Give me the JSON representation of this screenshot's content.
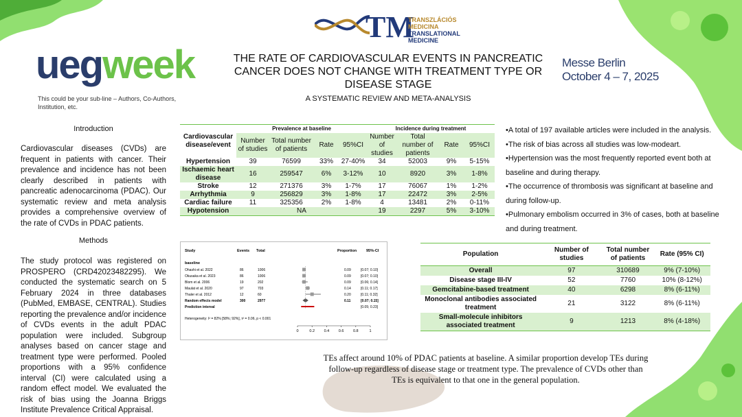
{
  "header": {
    "logo_ueg": "ueg",
    "logo_week": "week",
    "subline": "This could be your sub-line – Authors, Co-Authors, Institution, etc.",
    "title": "THE RATE OF CARDIOVASCULAR EVENTS IN PANCREATIC CANCER DOES NOT CHANGE WITH TREATMENT TYPE OR DISEASE STAGE",
    "subtitle": "A SYSTEMATIC REVIEW AND META-ANALYSIS",
    "venue_line1": "Messe Berlin",
    "venue_line2": "October 4 – 7, 2025",
    "tm_logo": "TM",
    "tm_hu1": "TRANSZLÁCIÓS",
    "tm_hu2": "MEDICINA",
    "tm_en1": "TRANSLATIONAL",
    "tm_en2": "MEDICINE"
  },
  "intro": {
    "heading": "Introduction",
    "text": "Cardiovascular diseases (CVDs) are frequent in patients with cancer. Their prevalence and incidence has not been clearly described in patients with pancreatic adenocarcinoma (PDAC). Our systematic review and meta analysis provides a comprehensive overview of the rate of CVDs in PDAC patients."
  },
  "methods": {
    "heading": "Methods",
    "text": "The study protocol was registered on PROSPERO (CRD42023482295). We conducted the systematic search on 5 February 2024 in three databases (PubMed, EMBASE, CENTRAL). Studies reporting the prevalence and/or incidence of CVDs events in the adult PDAC population were included. Subgroup analyses based on cancer stage and treatment type were performed. Pooled proportions with a 95% confidence interval (CI) were calculated using a random effect model. We evaluated the risk of bias using the Joanna Briggs Institute Prevalence Critical Appraisal."
  },
  "table1": {
    "group_baseline": "Prevalence at baseline",
    "group_incidence": "Incidence during treatment",
    "col_event": "Cardiovascular disease/event",
    "col_n_studies": "Number of studies",
    "col_total": "Total number of patients",
    "col_rate": "Rate",
    "col_ci": "95%CI",
    "rows": [
      {
        "event": "Hypertension",
        "b_n": "39",
        "b_total": "76599",
        "b_rate": "33%",
        "b_ci": "27-40%",
        "i_n": "34",
        "i_total": "52003",
        "i_rate": "9%",
        "i_ci": "5-15%"
      },
      {
        "event": "Ischaemic heart disease",
        "b_n": "16",
        "b_total": "259547",
        "b_rate": "6%",
        "b_ci": "3-12%",
        "i_n": "10",
        "i_total": "8920",
        "i_rate": "3%",
        "i_ci": "1-8%"
      },
      {
        "event": "Stroke",
        "b_n": "12",
        "b_total": "271376",
        "b_rate": "3%",
        "b_ci": "1-7%",
        "i_n": "17",
        "i_total": "76067",
        "i_rate": "1%",
        "i_ci": "1-2%"
      },
      {
        "event": "Arrhythmia",
        "b_n": "9",
        "b_total": "256829",
        "b_rate": "3%",
        "b_ci": "1-8%",
        "i_n": "17",
        "i_total": "22472",
        "i_rate": "3%",
        "i_ci": "2-5%"
      },
      {
        "event": "Cardiac failure",
        "b_n": "11",
        "b_total": "325356",
        "b_rate": "2%",
        "b_ci": "1-8%",
        "i_n": "4",
        "i_total": "13481",
        "i_rate": "2%",
        "i_ci": "0-11%"
      },
      {
        "event": "Hypotension",
        "b_na": "NA",
        "i_n": "19",
        "i_total": "2297",
        "i_rate": "5%",
        "i_ci": "3-10%"
      }
    ]
  },
  "results": {
    "bullets": [
      "•A total of 197 available articles were included in the analysis.",
      "•The risk of bias across all studies was low-modeart.",
      "•Hypertension was the most frequently reported event both at baseline and during therapy.",
      "•The occurrence of thrombosis was significant at baseline and during follow-up.",
      "•Pulmonary embolism occurred in 3% of cases, both at baseline and during treatment."
    ]
  },
  "forest": {
    "col_study": "Study",
    "col_events": "Events",
    "col_total": "Total",
    "col_prop": "Proportion",
    "col_ci": "95%-CI",
    "group": "baseline",
    "studies": [
      {
        "name": "Ohashi et al. 2022",
        "events": "86",
        "total": "1006",
        "prop": 0.09,
        "lo": 0.07,
        "hi": 0.1,
        "prop_label": "0.09",
        "ci": "[0.07; 0.10]"
      },
      {
        "name": "Okusaka et al. 2023",
        "events": "86",
        "total": "1006",
        "prop": 0.09,
        "lo": 0.07,
        "hi": 0.1,
        "prop_label": "0.09",
        "ci": "[0.07; 0.10]"
      },
      {
        "name": "Blom et al. 2006",
        "events": "19",
        "total": "202",
        "prop": 0.09,
        "lo": 0.06,
        "hi": 0.14,
        "prop_label": "0.09",
        "ci": "[0.06; 0.14]"
      },
      {
        "name": "Maulat et al. 2020",
        "events": "97",
        "total": "703",
        "prop": 0.14,
        "lo": 0.11,
        "hi": 0.17,
        "prop_label": "0.14",
        "ci": "[0.11; 0.17]"
      },
      {
        "name": "Thaler et al. 2012",
        "events": "12",
        "total": "60",
        "prop": 0.2,
        "lo": 0.11,
        "hi": 0.32,
        "prop_label": "0.20",
        "ci": "[0.11; 0.32]"
      }
    ],
    "random_label": "Random effects model",
    "random_events": "300",
    "random_total": "2977",
    "random_prop": 0.11,
    "random_lo": 0.07,
    "random_hi": 0.15,
    "random_prop_label": "0.11",
    "random_ci": "[0.07; 0.15]",
    "pred_label": "Prediction interval",
    "pred_lo": 0.05,
    "pred_hi": 0.23,
    "pred_ci": "[0.05; 0.23]",
    "heterogeneity": "Heterogeneity: I² = 82% [58%; 92%], τ² = 0.06, p < 0.001",
    "axis_ticks": [
      "0",
      "0.2",
      "0.4",
      "0.6",
      "0.8",
      "1"
    ]
  },
  "table2": {
    "col_population": "Population",
    "col_n": "Number of studies",
    "col_total": "Total number of patients",
    "col_rate": "Rate (95% CI)",
    "rows": [
      {
        "pop": "Overall",
        "n": "97",
        "total": "310689",
        "rate": "9% (7-10%)"
      },
      {
        "pop": "Disease stage III-IV",
        "n": "52",
        "total": "7760",
        "rate": "10% (8-12%)"
      },
      {
        "pop": "Gemcitabine-based treatment",
        "n": "40",
        "total": "6298",
        "rate": "8% (6-11%)"
      },
      {
        "pop": "Monoclonal antibodies associated treatment",
        "n": "21",
        "total": "3122",
        "rate": "8% (6-11%)"
      },
      {
        "pop": "Small-molecule inhibitors associated treatment",
        "n": "9",
        "total": "1213",
        "rate": "8% (4-18%)"
      }
    ]
  },
  "conclusion": "TEs affect around 10% of PDAC patients at baseline. A similar proportion develop TEs during follow-up regardless of disease stage or treatment type. The prevalence of CVDs other than TEs is equivalent to that one in the general population.",
  "colors": {
    "green": "#6cc24a",
    "navy": "#2a3d6b",
    "gold": "#b8892d",
    "row_green": "#d9f0cf"
  }
}
